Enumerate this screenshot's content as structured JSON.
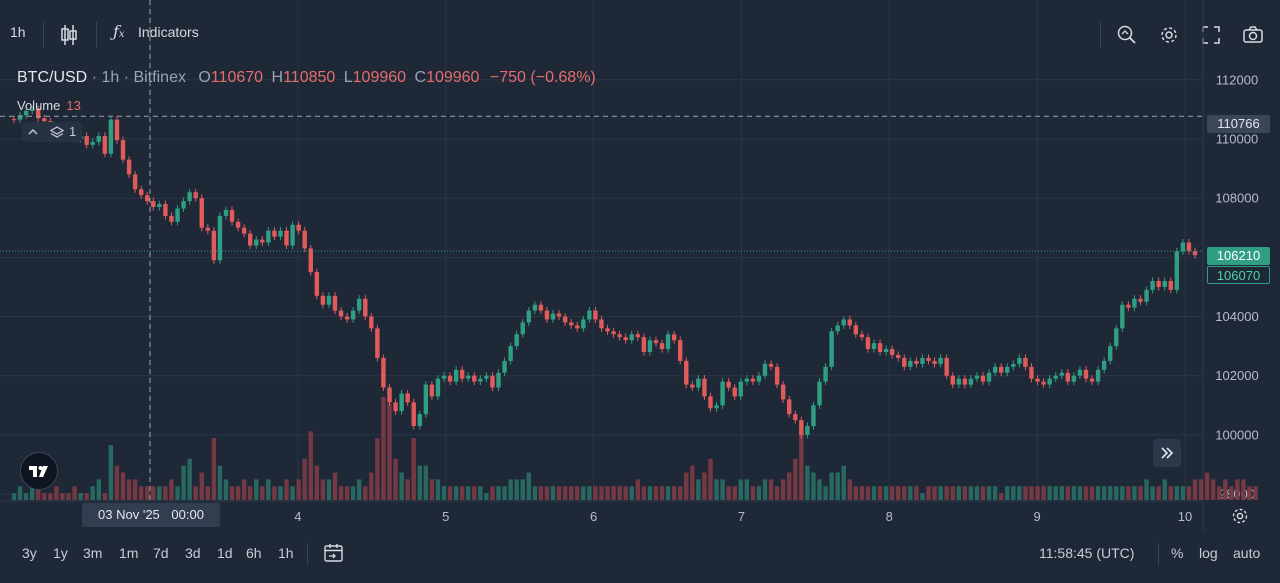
{
  "toolbar": {
    "interval": "1h",
    "indicators_label": "Indicators"
  },
  "legend": {
    "symbol": "BTC/USD",
    "interval": "1h",
    "exchange": "Bitfinex",
    "open_label": "O",
    "open": "110670",
    "high_label": "H",
    "high": "110850",
    "low_label": "L",
    "low": "109960",
    "close_label": "C",
    "close": "109960",
    "change": "−750 (−0.68%)"
  },
  "volume_legend": {
    "label": "Volume",
    "value": "13"
  },
  "pane_controls": {
    "count": "1"
  },
  "colors": {
    "up": "#2f9e83",
    "down": "#e15b5b",
    "background": "#1e2837",
    "grid": "#2a3547"
  },
  "chart_data": {
    "type": "candlestick",
    "symbol": "BTC/USD",
    "interval": "1h",
    "y_axis_ticks": [
      "112000",
      "110000",
      "108000",
      "106000",
      "104000",
      "102000",
      "100000",
      "98000"
    ],
    "ylim": [
      97800,
      112600
    ],
    "x_axis_ticks": [
      "3",
      "4",
      "5",
      "6",
      "7",
      "8",
      "9",
      "10"
    ],
    "crosshair_price": "110766",
    "crosshair_date": "03 Nov '25",
    "crosshair_time": "00:00",
    "last_price": "106210",
    "second_price": "106070",
    "close_series": [
      110650,
      110800,
      110950,
      111000,
      110700,
      110600,
      110400,
      110350,
      110300,
      110200,
      110000,
      110100,
      109800,
      109900,
      110100,
      109500,
      110650,
      109960,
      109300,
      108800,
      108300,
      108100,
      107900,
      107700,
      107800,
      107400,
      107200,
      107650,
      107900,
      108200,
      108000,
      107000,
      106900,
      105900,
      107400,
      107600,
      107200,
      107000,
      106800,
      106400,
      106600,
      106500,
      106900,
      106700,
      106900,
      106400,
      107100,
      106900,
      106300,
      105500,
      104700,
      104400,
      104700,
      104200,
      104000,
      103900,
      104200,
      104600,
      104000,
      103600,
      102600,
      101600,
      101100,
      100800,
      101400,
      101100,
      100300,
      100700,
      101700,
      101300,
      101900,
      102000,
      101800,
      102200,
      101900,
      102000,
      101800,
      101900,
      102000,
      101600,
      102100,
      102500,
      103000,
      103400,
      103800,
      104200,
      104400,
      104200,
      103900,
      104100,
      104000,
      103800,
      103700,
      103600,
      103900,
      104200,
      103900,
      103600,
      103500,
      103400,
      103300,
      103200,
      103400,
      103300,
      102800,
      103200,
      103100,
      102900,
      103400,
      103200,
      102500,
      101700,
      101600,
      101900,
      101300,
      100900,
      101000,
      101800,
      101600,
      101300,
      101800,
      101900,
      101800,
      102000,
      102400,
      102300,
      101700,
      101200,
      100700,
      100500,
      100000,
      100300,
      101000,
      101800,
      102300,
      103500,
      103700,
      103900,
      103700,
      103400,
      103300,
      102900,
      103100,
      102800,
      102900,
      102700,
      102600,
      102300,
      102500,
      102400,
      102600,
      102500,
      102400,
      102600,
      102000,
      101700,
      101900,
      101700,
      101900,
      102000,
      101800,
      102100,
      102300,
      102100,
      102300,
      102400,
      102600,
      102300,
      101900,
      101800,
      101700,
      101900,
      102000,
      102100,
      101800,
      102000,
      102200,
      101900,
      101800,
      102200,
      102500,
      103000,
      103600,
      104400,
      104300,
      104600,
      104500,
      104900,
      105200,
      105000,
      105200,
      104900,
      106200,
      106500,
      106210,
      106070
    ],
    "volume_series": [
      1,
      2,
      1,
      3,
      2,
      1,
      1,
      2,
      1,
      1,
      2,
      1,
      1,
      2,
      3,
      1,
      8,
      5,
      4,
      3,
      3,
      2,
      2,
      2,
      2,
      2,
      3,
      2,
      5,
      6,
      2,
      4,
      2,
      9,
      5,
      3,
      2,
      2,
      3,
      2,
      3,
      2,
      3,
      2,
      2,
      3,
      2,
      3,
      6,
      10,
      5,
      3,
      3,
      4,
      2,
      2,
      2,
      3,
      2,
      4,
      9,
      15,
      14,
      6,
      4,
      3,
      9,
      5,
      5,
      3,
      3,
      2,
      2,
      2,
      2,
      2,
      2,
      2,
      1,
      2,
      2,
      2,
      3,
      3,
      3,
      4,
      2,
      2,
      2,
      2,
      2,
      2,
      2,
      2,
      2,
      2,
      2,
      2,
      2,
      2,
      2,
      2,
      2,
      3,
      2,
      2,
      2,
      2,
      2,
      2,
      2,
      4,
      5,
      3,
      4,
      6,
      3,
      3,
      2,
      2,
      3,
      3,
      2,
      2,
      3,
      3,
      2,
      3,
      4,
      6,
      10,
      5,
      4,
      3,
      2,
      4,
      4,
      5,
      3,
      2,
      2,
      2,
      2,
      2,
      2,
      2,
      2,
      2,
      2,
      2,
      1,
      2,
      2,
      2,
      2,
      2,
      2,
      2,
      2,
      2,
      2,
      2,
      2,
      1,
      2,
      2,
      2,
      2,
      2,
      2,
      2,
      2,
      2,
      2,
      2,
      2,
      2,
      2,
      2,
      2,
      2,
      2,
      2,
      2,
      2,
      2,
      2,
      3,
      2,
      2,
      3,
      2,
      2,
      2,
      2,
      3,
      3,
      4,
      3,
      2,
      3,
      2,
      3,
      3,
      2,
      2
    ]
  },
  "bottombar": {
    "ranges": [
      "3y",
      "1y",
      "3m",
      "1m",
      "7d",
      "3d",
      "1d",
      "6h",
      "1h"
    ],
    "time": "11:58:45 (UTC)",
    "percent": "%",
    "log": "log",
    "auto": "auto"
  }
}
